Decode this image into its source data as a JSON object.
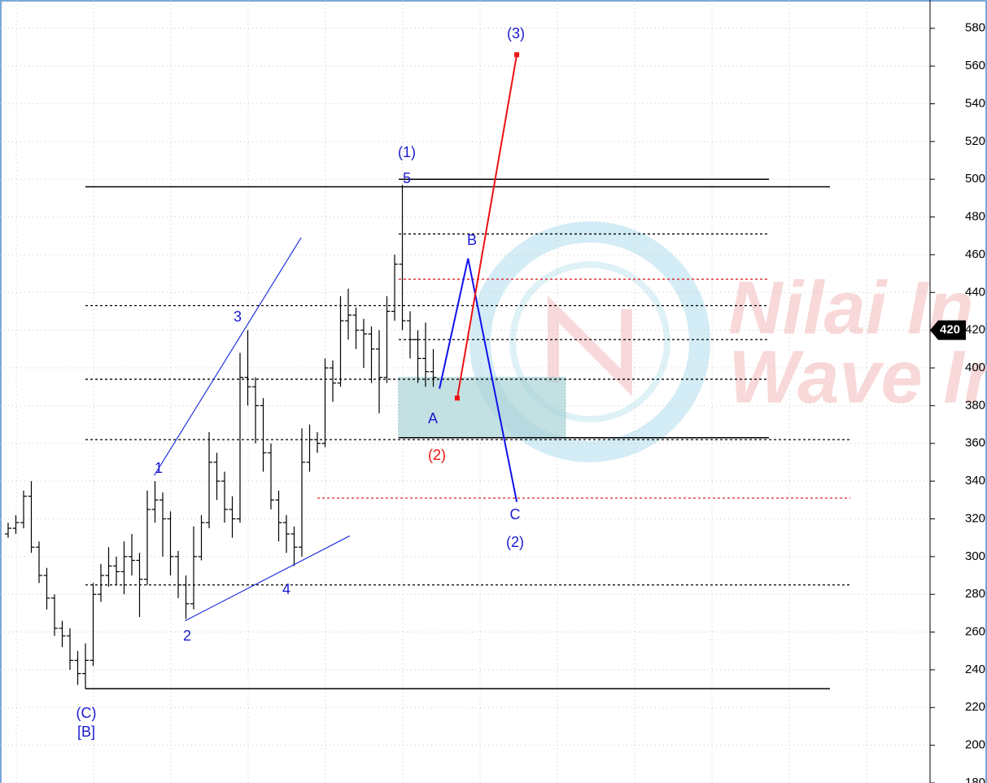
{
  "chart_data": {
    "type": "ohlc",
    "color": "#000000",
    "open": [
      312,
      315,
      318,
      332,
      305,
      290,
      278,
      262,
      258,
      245,
      238,
      245,
      280,
      290,
      295,
      292,
      300,
      298,
      288,
      325,
      330,
      320,
      300,
      285,
      275,
      300,
      318,
      350,
      340,
      325,
      320,
      395,
      390,
      380,
      355,
      330,
      318,
      312,
      305,
      350,
      362,
      360,
      400,
      392,
      425,
      428,
      420,
      418,
      410,
      395,
      430,
      455,
      425,
      415,
      405,
      398
    ],
    "high": [
      318,
      322,
      335,
      340,
      308,
      294,
      280,
      266,
      262,
      250,
      254,
      286,
      296,
      305,
      300,
      308,
      312,
      302,
      335,
      340,
      334,
      324,
      303,
      290,
      316,
      322,
      366,
      355,
      345,
      332,
      408,
      420,
      395,
      384,
      360,
      335,
      322,
      316,
      368,
      370,
      366,
      405,
      404,
      438,
      442,
      432,
      426,
      422,
      420,
      438,
      460,
      497,
      430,
      420,
      424,
      410
    ],
    "low": [
      310,
      312,
      315,
      302,
      286,
      272,
      258,
      252,
      240,
      232,
      230,
      242,
      276,
      284,
      285,
      280,
      290,
      268,
      285,
      318,
      300,
      290,
      278,
      267,
      272,
      298,
      315,
      330,
      318,
      310,
      318,
      380,
      360,
      345,
      325,
      308,
      302,
      295,
      300,
      345,
      355,
      358,
      382,
      390,
      415,
      410,
      400,
      392,
      376,
      392,
      425,
      420,
      405,
      392,
      390,
      390
    ],
    "close": [
      315,
      318,
      332,
      305,
      290,
      278,
      262,
      258,
      245,
      238,
      245,
      280,
      290,
      295,
      292,
      300,
      298,
      288,
      325,
      330,
      320,
      300,
      285,
      275,
      300,
      318,
      350,
      340,
      325,
      320,
      395,
      390,
      380,
      355,
      330,
      318,
      312,
      305,
      350,
      362,
      360,
      400,
      392,
      425,
      428,
      420,
      418,
      410,
      395,
      430,
      455,
      425,
      415,
      405,
      398,
      395
    ],
    "ylim": [
      180,
      595
    ],
    "yticks": [
      180,
      200,
      220,
      240,
      260,
      280,
      300,
      320,
      340,
      360,
      380,
      400,
      420,
      440,
      460,
      480,
      500,
      520,
      540,
      560,
      580
    ],
    "grid": true,
    "last_price": 420,
    "levels": [
      {
        "value": 496,
        "style": "solid",
        "color": "#000000"
      },
      {
        "value": 500,
        "style": "solid",
        "color": "#000000"
      },
      {
        "value": 471,
        "style": "dotted",
        "color": "#000000"
      },
      {
        "value": 447,
        "style": "dotted",
        "color": "#e02020"
      },
      {
        "value": 433,
        "style": "dotted",
        "color": "#000000"
      },
      {
        "value": 415,
        "style": "dotted",
        "color": "#000000"
      },
      {
        "value": 394,
        "style": "dotted",
        "color": "#000000"
      },
      {
        "value": 363,
        "style": "solid",
        "color": "#000000"
      },
      {
        "value": 362,
        "style": "dotted",
        "color": "#000000"
      },
      {
        "value": 331,
        "style": "dotted",
        "color": "#e02020"
      },
      {
        "value": 285,
        "style": "dotted",
        "color": "#000000"
      },
      {
        "value": 230,
        "style": "solid",
        "color": "#000000"
      }
    ],
    "zone": {
      "low": 363,
      "high": 395,
      "x": [
        50.5,
        72.1
      ],
      "color": "#a9d3d6"
    },
    "wave_lines": [
      {
        "color": "#2233dd",
        "x": [
          18.9,
          37.9
        ],
        "values": [
          343,
          469
        ]
      },
      {
        "color": "#2233dd",
        "x": [
          22.9,
          44.2
        ],
        "values": [
          266,
          311
        ]
      },
      {
        "color": "#1111ee",
        "x": [
          55.8,
          59.5,
          65.8
        ],
        "values": [
          389,
          458,
          329
        ]
      },
      {
        "color": "#ee1111",
        "x": [
          58.1,
          65.8
        ],
        "values": [
          384,
          566
        ]
      }
    ],
    "annotations": [
      {
        "text": "(3)",
        "color": "#1a1ad0"
      },
      {
        "text": "(1)",
        "color": "#1a1ad0"
      },
      {
        "text": "5",
        "color": "#1a1ad0"
      },
      {
        "text": "B",
        "color": "#1a1ad0"
      },
      {
        "text": "3",
        "color": "#1a1ad0"
      },
      {
        "text": "1",
        "color": "#1a1ad0"
      },
      {
        "text": "A",
        "color": "#1a1ad0"
      },
      {
        "text": "(2)",
        "color": "#ee1111"
      },
      {
        "text": "C",
        "color": "#1a1ad0"
      },
      {
        "text": "(2)",
        "color": "#1a1ad0"
      },
      {
        "text": "4",
        "color": "#1a1ad0"
      },
      {
        "text": "2",
        "color": "#1a1ad0"
      },
      {
        "text": "(C)",
        "color": "#1a1ad0"
      },
      {
        "text": "[B]",
        "color": "#1a1ad0"
      }
    ],
    "watermark": [
      "Nilai In",
      "Wave In"
    ]
  }
}
